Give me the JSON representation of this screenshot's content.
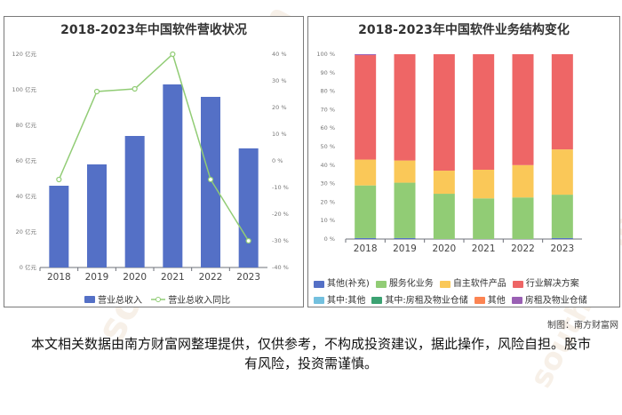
{
  "left_title": "2018-2023年中国软件营收状况",
  "right_title": "2018-2023年中国软件业务结构变化",
  "credit": "制图：南方财富网",
  "disclaimer": "本文相关数据由南方财富网整理提供，仅供参考，不构成投资建议，据此操作，风险自担。股市有风险，投资需谨慎。",
  "watermark": {
    "brand": "南方财富网",
    "url": "southmoney.com"
  },
  "colors": {
    "bar": "#5470c6",
    "line": "#91cc75",
    "seg_other": "#5470c6",
    "seg_service": "#91cc75",
    "seg_selfsw": "#fac858",
    "seg_solution": "#ee6666",
    "other_sub": "#73c0de",
    "rent_sub": "#3ba272",
    "misc": "#fc8452",
    "rent": "#9a60b4"
  },
  "chart_data": [
    {
      "type": "bar+line",
      "title": "2018-2023年中国软件营收状况",
      "categories": [
        "2018",
        "2019",
        "2020",
        "2021",
        "2022",
        "2023"
      ],
      "yleft": {
        "ticks": [
          "0 亿元",
          "20 亿元",
          "40 亿元",
          "60 亿元",
          "80 亿元",
          "100 亿元",
          "120 亿元"
        ],
        "ylim": [
          0,
          120
        ]
      },
      "yright": {
        "ticks": [
          "-40 %",
          "-30 %",
          "-20 %",
          "-10 %",
          "0 %",
          "10 %",
          "20 %",
          "30 %",
          "40 %"
        ],
        "ylim": [
          -40,
          40
        ]
      },
      "series": [
        {
          "name": "营业总收入",
          "type": "bar",
          "axis": "left",
          "values": [
            46,
            58,
            74,
            103,
            96,
            67
          ]
        },
        {
          "name": "营业总收入同比",
          "type": "line",
          "axis": "right",
          "values": [
            -7,
            26,
            27,
            40,
            -7,
            -30
          ]
        }
      ],
      "grid": false,
      "legend": "bottom-center"
    },
    {
      "type": "stacked-bar-percent",
      "title": "2018-2023年中国软件业务结构变化",
      "categories": [
        "2018",
        "2019",
        "2020",
        "2021",
        "2022",
        "2023"
      ],
      "yticks": [
        "0 %",
        "10 %",
        "20 %",
        "30 %",
        "40 %",
        "50 %",
        "60 %",
        "70 %",
        "80 %",
        "90 %",
        "100 %"
      ],
      "ylim": [
        0,
        100
      ],
      "series": [
        {
          "name": "其他(补充)",
          "values": [
            0.5,
            0.5,
            0,
            0,
            0,
            0.5
          ]
        },
        {
          "name": "服务化业务",
          "values": [
            28.5,
            30,
            24.5,
            22,
            22.5,
            23.5
          ]
        },
        {
          "name": "自主软件产品",
          "values": [
            14,
            12,
            12.5,
            15.5,
            17.5,
            24.5
          ]
        },
        {
          "name": "行业解决方案",
          "values": [
            56.5,
            57.5,
            63,
            62.5,
            60,
            51.5
          ]
        },
        {
          "name": "其中:其他",
          "values": [
            0,
            0,
            0,
            0,
            0,
            0
          ]
        },
        {
          "name": "其中:房租及物业仓储",
          "values": [
            0,
            0,
            0,
            0,
            0,
            0
          ]
        },
        {
          "name": "其他",
          "values": [
            0,
            0,
            0,
            0,
            0,
            0
          ]
        },
        {
          "name": "房租及物业仓储",
          "values": [
            0.5,
            0,
            0,
            0,
            0,
            0
          ]
        }
      ],
      "grid": false,
      "legend": "bottom"
    }
  ]
}
